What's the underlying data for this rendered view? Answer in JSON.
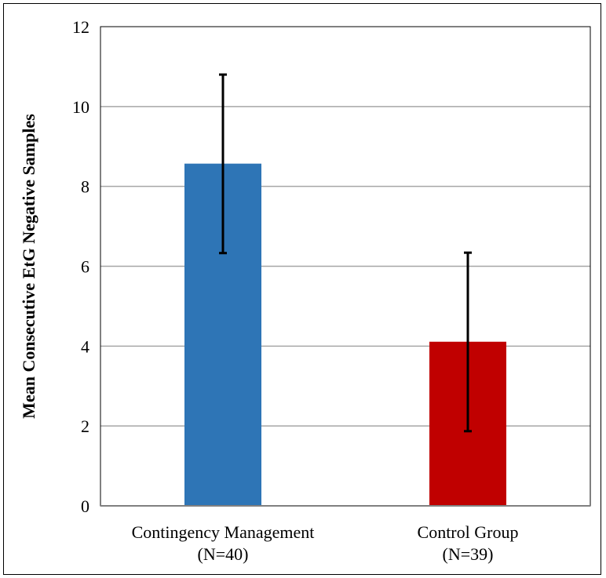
{
  "chart_data": {
    "type": "bar",
    "title": "",
    "xlabel": "",
    "ylabel": "Mean Consecutive EtG Negative Samples",
    "ylim": [
      0,
      12
    ],
    "yticks": [
      0,
      2,
      4,
      6,
      8,
      10,
      12
    ],
    "grid": true,
    "legend": "none",
    "categories": [
      {
        "line1": "Contingency Management",
        "line2": "(N=40)"
      },
      {
        "line1": "Control Group",
        "line2": "(N=39)"
      }
    ],
    "values": [
      8.57,
      4.11
    ],
    "error_low": [
      6.33,
      1.87
    ],
    "error_high": [
      10.8,
      6.34
    ],
    "colors": [
      "#2e75b6",
      "#c00000"
    ]
  }
}
